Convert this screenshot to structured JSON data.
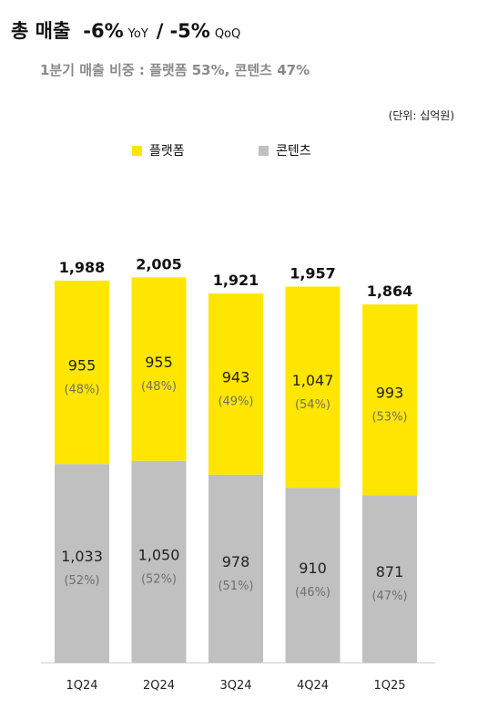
{
  "header": {
    "title_main": "총 매출",
    "yoy_value": "-6%",
    "yoy_label": "YoY",
    "slash": "/",
    "qoq_value": "-5%",
    "qoq_label": "QoQ",
    "subtitle": "1분기 매출 비중 : 플랫폼 53%, 콘텐츠 47%",
    "unit": "(단위: 십억원)"
  },
  "legend": [
    {
      "label": "플랫폼",
      "color": "#FFE600"
    },
    {
      "label": "콘텐츠",
      "color": "#C0C0C0"
    }
  ],
  "chart_data": {
    "type": "bar",
    "stacked": true,
    "categories": [
      "1Q24",
      "2Q24",
      "3Q24",
      "4Q24",
      "1Q25"
    ],
    "totals": [
      "1,988",
      "2,005",
      "1,921",
      "1,957",
      "1,864"
    ],
    "series": [
      {
        "name": "콘텐츠",
        "color": "#C0C0C0",
        "values": [
          1033,
          1050,
          978,
          910,
          871
        ],
        "value_labels": [
          "1,033",
          "1,050",
          "978",
          "910",
          "871"
        ],
        "pct_labels": [
          "(52%)",
          "(52%)",
          "(51%)",
          "(46%)",
          "(47%)"
        ]
      },
      {
        "name": "플랫폼",
        "color": "#FFE600",
        "values": [
          955,
          955,
          943,
          1047,
          993
        ],
        "value_labels": [
          "955",
          "955",
          "943",
          "1,047",
          "993"
        ],
        "pct_labels": [
          "(48%)",
          "(48%)",
          "(49%)",
          "(54%)",
          "(53%)"
        ]
      }
    ],
    "grid": false
  }
}
